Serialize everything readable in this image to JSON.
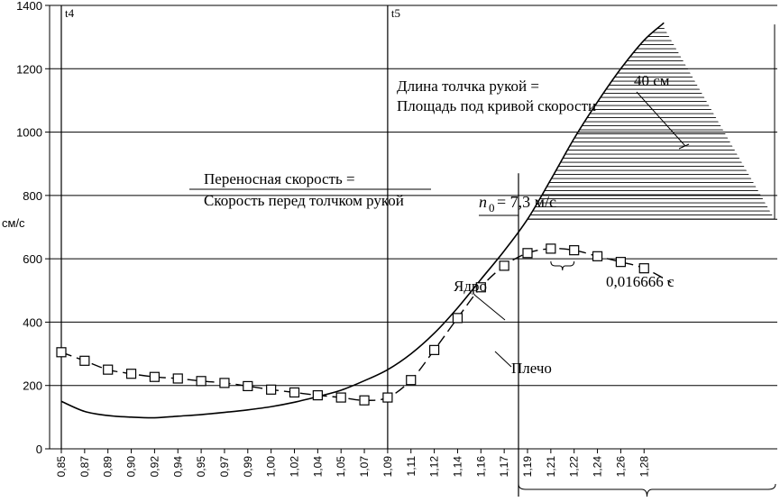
{
  "chart_data": {
    "type": "line",
    "ylabel": "см/с",
    "ylim": [
      0,
      1400
    ],
    "yticks": [
      "0",
      "200",
      "400",
      "600",
      "800",
      "1000",
      "1200",
      "1400"
    ],
    "x_tick_labels": [
      "0,85",
      "0,87",
      "0,89",
      "0,90",
      "0,92",
      "0,94",
      "0,95",
      "0,97",
      "0,99",
      "1,00",
      "1,02",
      "1,04",
      "1,05",
      "1,07",
      "1,09",
      "1,11",
      "1,12",
      "1,14",
      "1,16",
      "1,17",
      "1,19",
      "1,21",
      "1,22",
      "1,24",
      "1,26",
      "1,28"
    ],
    "markers": [
      {
        "label": "t4",
        "x": "0,85"
      },
      {
        "label": "t5",
        "x": "1,09"
      }
    ],
    "series": [
      {
        "name": "Ядро",
        "style": "solid",
        "x": [
          "0,85",
          "0,87",
          "0,89",
          "0,90",
          "0,92",
          "0,94",
          "0,95",
          "0,97",
          "0,99",
          "1,00",
          "1,02",
          "1,04",
          "1,05",
          "1,07",
          "1,09",
          "1,11",
          "1,12",
          "1,14",
          "1,16",
          "1,17",
          "1,19",
          "1,21",
          "1,22",
          "1,24",
          "1,26",
          "1,28"
        ],
        "values": [
          150,
          118,
          105,
          100,
          98,
          103,
          108,
          115,
          123,
          133,
          147,
          165,
          185,
          215,
          250,
          300,
          365,
          445,
          535,
          625,
          725,
          850,
          980,
          1095,
          1200,
          1290
        ]
      },
      {
        "name": "Плечо",
        "style": "dashed",
        "marker": "square",
        "x": [
          "0,85",
          "0,87",
          "0,89",
          "0,90",
          "0,92",
          "0,94",
          "0,95",
          "0,97",
          "0,99",
          "1,00",
          "1,02",
          "1,04",
          "1,05",
          "1,07",
          "1,09",
          "1,11",
          "1,12",
          "1,14",
          "1,16",
          "1,17",
          "1,19",
          "1,21",
          "1,22",
          "1,24",
          "1,26",
          "1,28"
        ],
        "values": [
          305,
          278,
          250,
          237,
          227,
          222,
          214,
          208,
          198,
          187,
          178,
          169,
          162,
          153,
          162,
          217,
          312,
          413,
          510,
          578,
          618,
          632,
          627,
          608,
          590,
          570
        ]
      }
    ],
    "annotations": {
      "v0_label": "n",
      "v0_sub": "0",
      "v0_value": " = 7,3 м/с",
      "transfer_line1": "Переносная скорость =",
      "transfer_line2": "Скорость перед толчком рукой",
      "length_line1": "Длина толчка рукой =",
      "length_line2": "Площадь под кривой скорости",
      "area_value": "40 см",
      "interval": "0,016666 с",
      "core_label": "Ядро",
      "shoulder_label": "Плечо"
    },
    "grid": "horizontal"
  }
}
